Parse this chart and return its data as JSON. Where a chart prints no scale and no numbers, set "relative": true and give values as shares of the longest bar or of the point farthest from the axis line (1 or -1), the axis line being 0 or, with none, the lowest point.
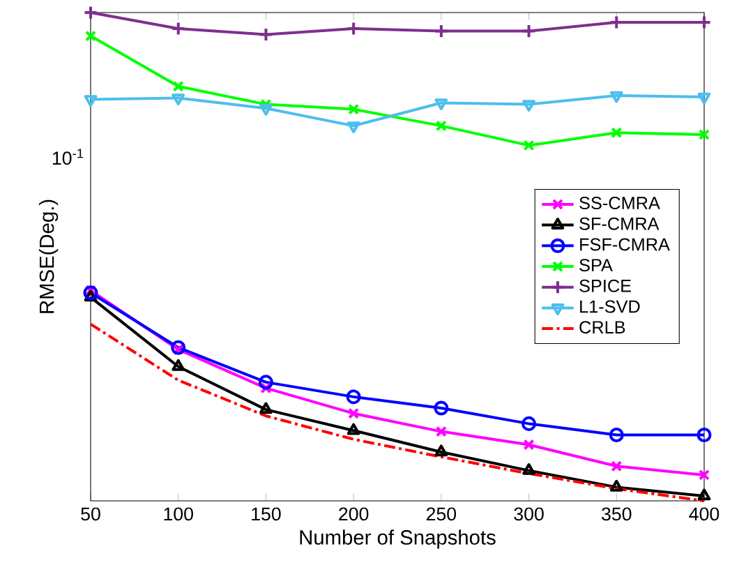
{
  "chart_data": {
    "type": "line",
    "xlabel": "Number of Snapshots",
    "ylabel": "RMSE(Deg.)",
    "x": [
      50,
      100,
      150,
      200,
      250,
      300,
      350,
      400
    ],
    "xlim": [
      50,
      400
    ],
    "xticks": [
      50,
      100,
      150,
      200,
      250,
      300,
      350,
      400
    ],
    "relative": true,
    "annotations": [
      "10$^{-1}$"
    ],
    "legend": "right",
    "grid": false,
    "series": [
      {
        "name": "SS-CMRA",
        "color": "#ff00ff",
        "marker": "cross",
        "line_style": "solid",
        "values": [
          0.431,
          0.31,
          0.231,
          0.179,
          0.142,
          0.115,
          0.071,
          0.053
        ]
      },
      {
        "name": "SF-CMRA",
        "color": "#000000",
        "marker": "triangle",
        "line_style": "solid",
        "values": [
          0.417,
          0.275,
          0.187,
          0.144,
          0.1,
          0.062,
          0.028,
          0.01
        ]
      },
      {
        "name": "FSF-CMRA",
        "color": "#0000ff",
        "marker": "circle",
        "line_style": "solid",
        "values": [
          0.426,
          0.314,
          0.243,
          0.213,
          0.19,
          0.158,
          0.135,
          0.135
        ]
      },
      {
        "name": "SPA",
        "color": "#00ff00",
        "marker": "cross",
        "line_style": "solid",
        "values": [
          0.952,
          0.849,
          0.812,
          0.802,
          0.768,
          0.728,
          0.754,
          0.75
        ]
      },
      {
        "name": "SPICE",
        "color": "#7e2f8e",
        "marker": "plus",
        "line_style": "solid",
        "values": [
          1.0,
          0.967,
          0.955,
          0.967,
          0.962,
          0.962,
          0.98,
          0.98
        ]
      },
      {
        "name": "L1-SVD",
        "color": "#4dbeee",
        "marker": "triangle-down",
        "line_style": "solid",
        "values": [
          0.822,
          0.825,
          0.804,
          0.768,
          0.815,
          0.812,
          0.83,
          0.827
        ]
      },
      {
        "name": "CRLB",
        "color": "#ff0000",
        "marker": "none",
        "line_style": "dashdot",
        "values": [
          0.362,
          0.247,
          0.174,
          0.126,
          0.09,
          0.056,
          0.025,
          0.0
        ]
      }
    ]
  }
}
